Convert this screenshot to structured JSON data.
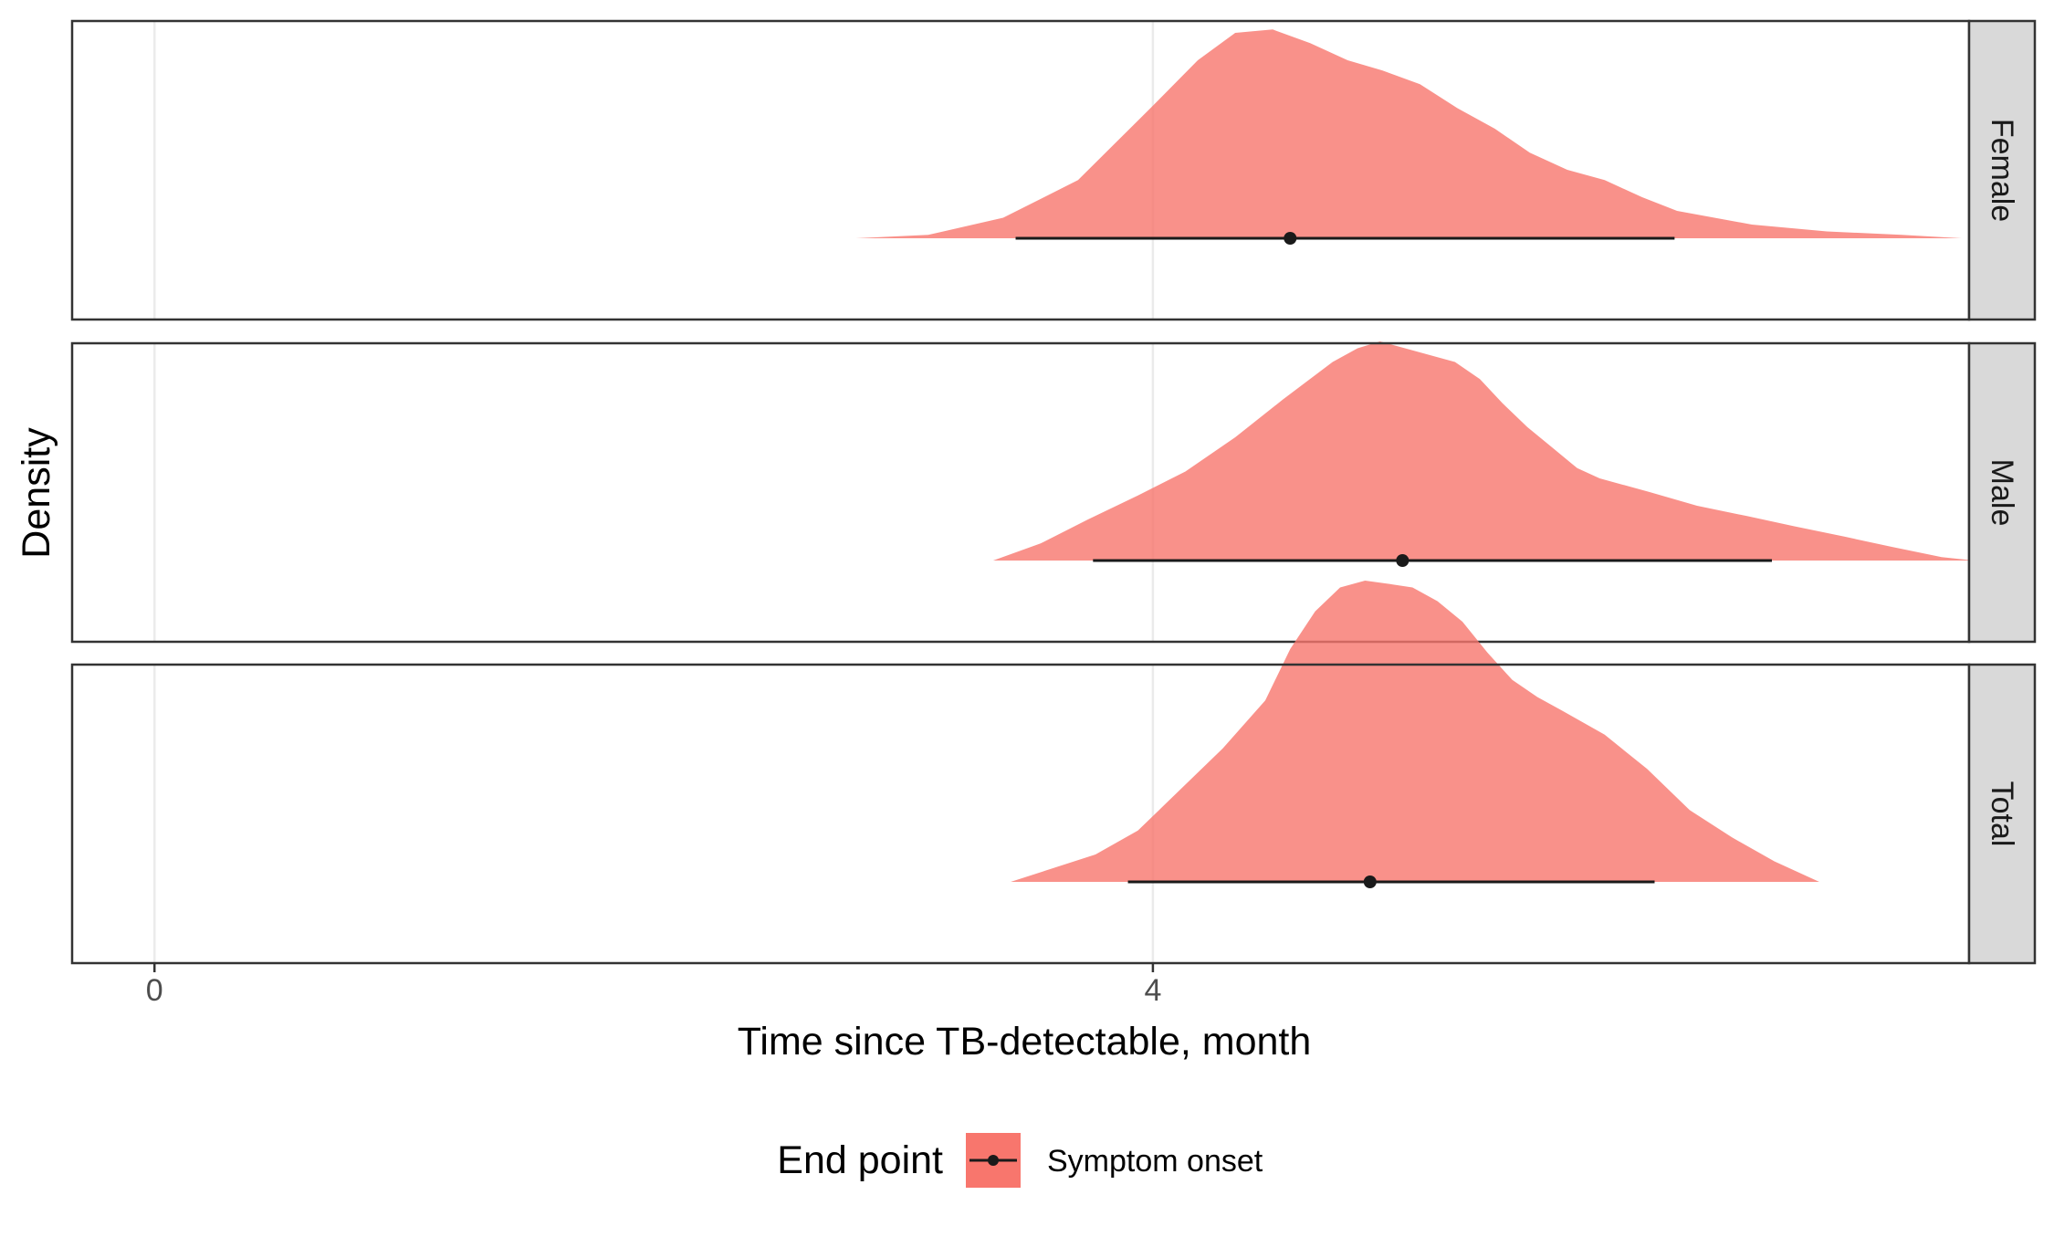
{
  "chart_data": {
    "type": "area",
    "xlabel": "Time since TB-detectable, month",
    "ylabel": "Density",
    "xlim": [
      -0.33,
      7.27
    ],
    "x_ticks": [
      0,
      4
    ],
    "x_tick_labels": [
      "0",
      "4"
    ],
    "grid": true,
    "legend": {
      "title": "End point",
      "position": "bottom",
      "entries": [
        "Symptom onset"
      ]
    },
    "colors": {
      "fill": "#f8766d",
      "interval": "#1a1a1a",
      "strip": "#d9d9d9",
      "grid": "#ebebeb",
      "border": "#333333"
    },
    "panels": [
      {
        "label": "Female",
        "series_name": "Symptom onset",
        "point": 4.55,
        "interval": [
          3.45,
          6.09
        ],
        "density_x": [
          2.81,
          3.1,
          3.4,
          3.7,
          3.99,
          4.18,
          4.33,
          4.48,
          4.63,
          4.78,
          4.92,
          5.07,
          5.22,
          5.37,
          5.51,
          5.66,
          5.81,
          5.96,
          6.1,
          6.4,
          6.7,
          7.0,
          7.24
        ],
        "density_y": [
          0.0,
          0.01,
          0.06,
          0.17,
          0.38,
          0.52,
          0.6,
          0.61,
          0.57,
          0.52,
          0.49,
          0.45,
          0.38,
          0.32,
          0.25,
          0.2,
          0.17,
          0.12,
          0.08,
          0.04,
          0.02,
          0.01,
          0.0
        ]
      },
      {
        "label": "Male",
        "series_name": "Symptom onset",
        "point": 5.0,
        "interval": [
          3.76,
          6.48
        ],
        "density_x": [
          3.36,
          3.55,
          3.74,
          3.94,
          4.13,
          4.33,
          4.52,
          4.72,
          4.82,
          4.91,
          5.01,
          5.11,
          5.21,
          5.31,
          5.4,
          5.5,
          5.6,
          5.7,
          5.79,
          5.99,
          6.18,
          6.38,
          6.57,
          6.77,
          6.96,
          7.16,
          7.29
        ],
        "density_y": [
          0.0,
          0.05,
          0.12,
          0.19,
          0.26,
          0.36,
          0.47,
          0.58,
          0.62,
          0.64,
          0.62,
          0.6,
          0.58,
          0.53,
          0.46,
          0.39,
          0.33,
          0.27,
          0.24,
          0.2,
          0.16,
          0.13,
          0.1,
          0.07,
          0.04,
          0.01,
          0.0
        ]
      },
      {
        "label": "Total",
        "series_name": "Symptom onset",
        "point": 4.87,
        "interval": [
          3.9,
          6.01
        ],
        "density_x": [
          3.43,
          3.6,
          3.77,
          3.94,
          4.11,
          4.28,
          4.45,
          4.55,
          4.65,
          4.75,
          4.85,
          4.95,
          5.04,
          5.14,
          5.24,
          5.34,
          5.44,
          5.54,
          5.64,
          5.81,
          5.98,
          6.15,
          6.32,
          6.49,
          6.67
        ],
        "density_y": [
          0.0,
          0.04,
          0.08,
          0.15,
          0.27,
          0.39,
          0.53,
          0.68,
          0.79,
          0.86,
          0.88,
          0.87,
          0.86,
          0.82,
          0.76,
          0.67,
          0.59,
          0.54,
          0.5,
          0.43,
          0.33,
          0.21,
          0.13,
          0.06,
          0.0
        ]
      }
    ]
  }
}
